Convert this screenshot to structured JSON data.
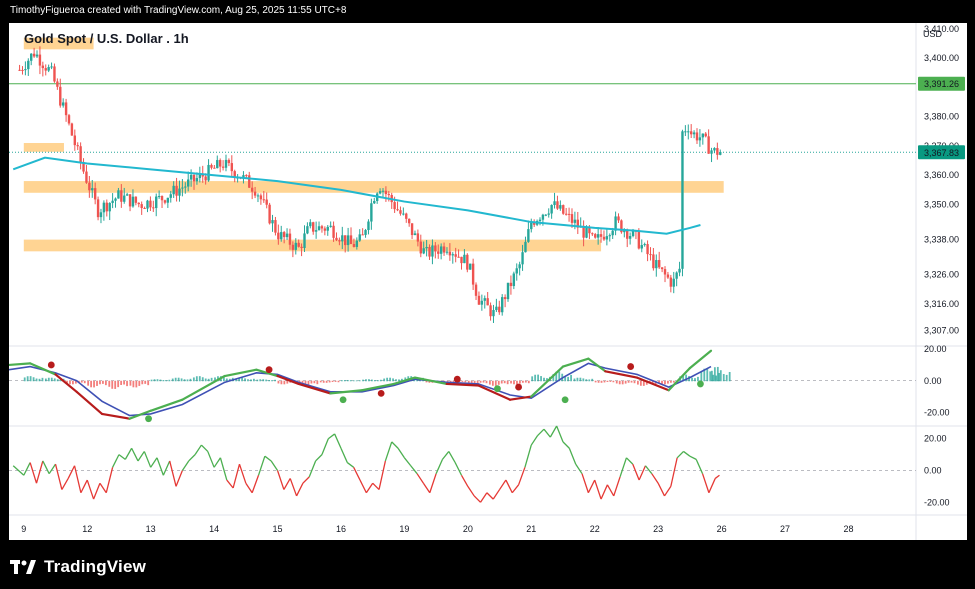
{
  "header": {
    "credit": "TimothyFigueroa created with TradingView.com, Aug 25, 2025 11:55 UTC+8"
  },
  "footer": {
    "brand": "TradingView"
  },
  "colors": {
    "candle_up": "#26a69a",
    "candle_down": "#ef5350",
    "moving_average": "#22b8cf",
    "zone": "#ffcc80",
    "level_line": "#4caf50",
    "macd_fast": "#4caf50",
    "macd_slow": "#3f51b5",
    "macd_fast_bear": "#b71c1c",
    "hist_up": "#26a69a",
    "hist_down": "#ef5350",
    "osc_up": "#4caf50",
    "osc_down": "#e53935"
  },
  "chart_data": [
    {
      "type": "candlestick",
      "title": "Gold Spot / U.S. Dollar . 1h",
      "currency_label": "USD",
      "y_ticks": [
        "3,410.00",
        "3,400.00",
        "3,380.00",
        "3,360.00",
        "3,350.00",
        "3,338.00",
        "3,326.00",
        "3,316.00",
        "3,307.00"
      ],
      "y_tick_values": [
        3410,
        3400,
        3380,
        3360,
        3350,
        3338,
        3326,
        3316,
        3307
      ],
      "x_ticks": [
        "9",
        "12",
        "13",
        "14",
        "15",
        "16",
        "19",
        "20",
        "21",
        "22",
        "23",
        "26",
        "27",
        "28"
      ],
      "x_tick_positions": [
        0,
        3,
        6,
        9,
        12,
        15,
        18,
        21,
        24,
        27,
        30,
        33,
        36,
        39
      ],
      "price_labels": [
        {
          "text": "3,391.26",
          "value": 3391.26,
          "color": "#4caf50"
        },
        {
          "text": "3,367.83",
          "value": 3367.83,
          "color": "#089981"
        }
      ],
      "hidden_tick": "3,370.00",
      "zones": [
        {
          "from": 3403,
          "to": 3407,
          "x_start": 0,
          "x_end": 3.3
        },
        {
          "from": 3368,
          "to": 3371,
          "x_start": 0,
          "x_end": 1.9
        },
        {
          "from": 3354,
          "to": 3358,
          "x_start": 0,
          "x_end": 33.1
        },
        {
          "from": 3334,
          "to": 3338,
          "x_start": 0,
          "x_end": 27.3
        }
      ],
      "horizontal_line": 3391.26,
      "moving_average": [
        [
          -0.5,
          3362
        ],
        [
          1,
          3366
        ],
        [
          3,
          3364
        ],
        [
          6,
          3362
        ],
        [
          9,
          3360
        ],
        [
          12,
          3358
        ],
        [
          15,
          3355
        ],
        [
          18,
          3351
        ],
        [
          21,
          3348
        ],
        [
          24,
          3344
        ],
        [
          27,
          3342
        ],
        [
          29,
          3341
        ],
        [
          30.4,
          3340
        ],
        [
          31.5,
          3342
        ],
        [
          32,
          3343
        ]
      ],
      "price_path": [
        [
          -0.2,
          3396
        ],
        [
          0.5,
          3402
        ],
        [
          1.3,
          3395
        ],
        [
          2,
          3380
        ],
        [
          2.8,
          3362
        ],
        [
          3.5,
          3348
        ],
        [
          4.5,
          3353
        ],
        [
          5.5,
          3350
        ],
        [
          6.5,
          3352
        ],
        [
          7.5,
          3356
        ],
        [
          8.5,
          3360
        ],
        [
          9.4,
          3364
        ],
        [
          10.2,
          3360
        ],
        [
          11,
          3355
        ],
        [
          12,
          3340
        ],
        [
          13,
          3335
        ],
        [
          13.5,
          3342
        ],
        [
          14.5,
          3342
        ],
        [
          15.5,
          3336
        ],
        [
          16,
          3338
        ],
        [
          16.5,
          3352
        ],
        [
          16.8,
          3357
        ],
        [
          17.5,
          3350
        ],
        [
          18,
          3345
        ],
        [
          19,
          3333
        ],
        [
          20,
          3336
        ],
        [
          21,
          3330
        ],
        [
          21.5,
          3318
        ],
        [
          22.3,
          3312
        ],
        [
          23.5,
          3330
        ],
        [
          24,
          3344
        ],
        [
          25,
          3350
        ],
        [
          26,
          3344
        ],
        [
          27,
          3337
        ],
        [
          28,
          3344
        ],
        [
          29,
          3338
        ],
        [
          30,
          3328
        ],
        [
          30.7,
          3323
        ],
        [
          31.2,
          3331
        ],
        [
          31.4,
          3375
        ],
        [
          32,
          3373
        ],
        [
          32.6,
          3368
        ],
        [
          33.0,
          3368
        ]
      ],
      "ylim": [
        3302,
        3412
      ],
      "xlim": [
        -0.7,
        42.1
      ]
    },
    {
      "type": "line",
      "name": "momentum-oscillator",
      "y_ticks": [
        "20.00",
        "0.00",
        "-20.00"
      ],
      "y_tick_values": [
        20,
        0,
        -20
      ],
      "ylim": [
        -28,
        22
      ],
      "fast": [
        [
          -0.7,
          10
        ],
        [
          0.3,
          11
        ],
        [
          1.5,
          4
        ],
        [
          2.5,
          -7
        ],
        [
          3.7,
          -21
        ],
        [
          5,
          -24
        ],
        [
          6,
          -19
        ],
        [
          7.5,
          -12
        ],
        [
          9.5,
          3
        ],
        [
          11,
          7
        ],
        [
          12,
          3
        ],
        [
          13,
          -2
        ],
        [
          14.5,
          -8
        ],
        [
          16,
          -6
        ],
        [
          17.5,
          -2
        ],
        [
          18.5,
          2
        ],
        [
          20,
          -2
        ],
        [
          21.5,
          -3
        ],
        [
          23,
          -12
        ],
        [
          24,
          -10
        ],
        [
          25.5,
          9
        ],
        [
          26.7,
          14
        ],
        [
          27.5,
          6
        ],
        [
          29,
          2
        ],
        [
          30.5,
          -6
        ],
        [
          31.5,
          8
        ],
        [
          32.5,
          19
        ]
      ],
      "slow": [
        [
          -0.7,
          7
        ],
        [
          0.3,
          9
        ],
        [
          1.5,
          5
        ],
        [
          2.5,
          0
        ],
        [
          3.7,
          -13
        ],
        [
          5,
          -22
        ],
        [
          6,
          -21
        ],
        [
          7.5,
          -15
        ],
        [
          9.5,
          -1
        ],
        [
          11,
          5
        ],
        [
          12,
          4
        ],
        [
          13,
          -1
        ],
        [
          14.5,
          -7
        ],
        [
          16,
          -7
        ],
        [
          17.5,
          -3
        ],
        [
          18.5,
          1
        ],
        [
          20,
          -1
        ],
        [
          21.5,
          -2
        ],
        [
          23,
          -9
        ],
        [
          24,
          -11
        ],
        [
          25.5,
          2
        ],
        [
          26.7,
          11
        ],
        [
          27.5,
          8
        ],
        [
          29,
          4
        ],
        [
          30.5,
          -4
        ],
        [
          31.5,
          2
        ],
        [
          32.5,
          9
        ]
      ],
      "histogram": [
        [
          0,
          3
        ],
        [
          1,
          2
        ],
        [
          2,
          -2
        ],
        [
          3,
          -4
        ],
        [
          4,
          -5
        ],
        [
          5,
          -4
        ],
        [
          6,
          1
        ],
        [
          7,
          2
        ],
        [
          8,
          3
        ],
        [
          9,
          3
        ],
        [
          10,
          2
        ],
        [
          11,
          1
        ],
        [
          12,
          -2
        ],
        [
          13,
          -3
        ],
        [
          14,
          -1
        ],
        [
          15,
          0.5
        ],
        [
          16,
          1
        ],
        [
          17,
          2
        ],
        [
          18,
          3
        ],
        [
          19,
          -1
        ],
        [
          20,
          -1
        ],
        [
          21,
          -2
        ],
        [
          22,
          -3
        ],
        [
          23,
          -2
        ],
        [
          24,
          4
        ],
        [
          25,
          6
        ],
        [
          26,
          2
        ],
        [
          27,
          -1
        ],
        [
          28,
          -2
        ],
        [
          29,
          -3
        ],
        [
          30,
          -2
        ],
        [
          31,
          4
        ],
        [
          32,
          8
        ],
        [
          32.5,
          9
        ]
      ],
      "signal_dots": [
        {
          "x": 1.3,
          "y": 10,
          "kind": "bear"
        },
        {
          "x": 5.9,
          "y": -24,
          "kind": "bull"
        },
        {
          "x": 11.6,
          "y": 7,
          "kind": "bear"
        },
        {
          "x": 15.1,
          "y": -12,
          "kind": "bull"
        },
        {
          "x": 16.9,
          "y": -8,
          "kind": "bear"
        },
        {
          "x": 20.5,
          "y": 1,
          "kind": "bear"
        },
        {
          "x": 22.4,
          "y": -5,
          "kind": "bull"
        },
        {
          "x": 23.4,
          "y": -4,
          "kind": "bear"
        },
        {
          "x": 25.6,
          "y": -12,
          "kind": "bull"
        },
        {
          "x": 28.7,
          "y": 9,
          "kind": "bear"
        },
        {
          "x": 32.0,
          "y": -2,
          "kind": "bull"
        }
      ]
    },
    {
      "type": "line",
      "name": "rsi-style-oscillator",
      "y_ticks": [
        "20.00",
        "0.00",
        "-20.00"
      ],
      "y_tick_values": [
        20,
        0,
        -20
      ],
      "ylim": [
        -28,
        28
      ],
      "values": [
        [
          -0.5,
          3
        ],
        [
          0,
          -3
        ],
        [
          0.3,
          5
        ],
        [
          0.6,
          -8
        ],
        [
          0.9,
          6
        ],
        [
          1.2,
          -2
        ],
        [
          1.5,
          4
        ],
        [
          1.8,
          -12
        ],
        [
          2.1,
          -5
        ],
        [
          2.4,
          3
        ],
        [
          2.7,
          -14
        ],
        [
          3.0,
          -6
        ],
        [
          3.3,
          -18
        ],
        [
          3.6,
          -8
        ],
        [
          3.9,
          -14
        ],
        [
          4.2,
          2
        ],
        [
          4.5,
          10
        ],
        [
          4.8,
          7
        ],
        [
          5.1,
          14
        ],
        [
          5.4,
          6
        ],
        [
          5.7,
          12
        ],
        [
          6.0,
          2
        ],
        [
          6.3,
          8
        ],
        [
          6.6,
          -3
        ],
        [
          6.9,
          6
        ],
        [
          7.2,
          -10
        ],
        [
          7.5,
          0
        ],
        [
          7.8,
          6
        ],
        [
          8.1,
          10
        ],
        [
          8.4,
          16
        ],
        [
          8.7,
          12
        ],
        [
          9.0,
          2
        ],
        [
          9.3,
          8
        ],
        [
          9.6,
          -6
        ],
        [
          9.9,
          -11
        ],
        [
          10.2,
          4
        ],
        [
          10.5,
          -8
        ],
        [
          10.8,
          -14
        ],
        [
          11.1,
          -3
        ],
        [
          11.4,
          9
        ],
        [
          11.7,
          6
        ],
        [
          12.0,
          0
        ],
        [
          12.3,
          -12
        ],
        [
          12.6,
          -5
        ],
        [
          12.9,
          -16
        ],
        [
          13.2,
          -8
        ],
        [
          13.5,
          -4
        ],
        [
          13.8,
          6
        ],
        [
          14.1,
          10
        ],
        [
          14.4,
          20
        ],
        [
          14.7,
          23
        ],
        [
          15.0,
          14
        ],
        [
          15.3,
          5
        ],
        [
          15.6,
          2
        ],
        [
          15.9,
          -6
        ],
        [
          16.2,
          -14
        ],
        [
          16.5,
          -8
        ],
        [
          16.8,
          -12
        ],
        [
          17.1,
          6
        ],
        [
          17.4,
          18
        ],
        [
          17.7,
          14
        ],
        [
          18.0,
          8
        ],
        [
          18.3,
          3
        ],
        [
          18.6,
          -2
        ],
        [
          18.9,
          -8
        ],
        [
          19.2,
          -14
        ],
        [
          19.5,
          -2
        ],
        [
          19.8,
          7
        ],
        [
          20.1,
          12
        ],
        [
          20.4,
          5
        ],
        [
          20.7,
          -3
        ],
        [
          21.0,
          -10
        ],
        [
          21.3,
          -16
        ],
        [
          21.6,
          -20
        ],
        [
          21.9,
          -14
        ],
        [
          22.2,
          -18
        ],
        [
          22.5,
          -12
        ],
        [
          22.8,
          -6
        ],
        [
          23.1,
          -14
        ],
        [
          23.4,
          -9
        ],
        [
          23.7,
          2
        ],
        [
          24.0,
          16
        ],
        [
          24.3,
          22
        ],
        [
          24.6,
          26
        ],
        [
          24.9,
          21
        ],
        [
          25.2,
          28
        ],
        [
          25.5,
          18
        ],
        [
          25.8,
          14
        ],
        [
          26.1,
          4
        ],
        [
          26.4,
          -2
        ],
        [
          26.7,
          -14
        ],
        [
          27.0,
          -6
        ],
        [
          27.3,
          -18
        ],
        [
          27.6,
          -9
        ],
        [
          27.9,
          -16
        ],
        [
          28.2,
          -4
        ],
        [
          28.5,
          8
        ],
        [
          28.8,
          4
        ],
        [
          29.1,
          -6
        ],
        [
          29.4,
          3
        ],
        [
          29.7,
          -2
        ],
        [
          30.0,
          -8
        ],
        [
          30.3,
          -16
        ],
        [
          30.6,
          -10
        ],
        [
          30.9,
          8
        ],
        [
          31.2,
          12
        ],
        [
          31.5,
          9
        ],
        [
          31.8,
          7
        ],
        [
          32.1,
          -2
        ],
        [
          32.4,
          -14
        ],
        [
          32.7,
          -5
        ],
        [
          32.9,
          -3
        ]
      ]
    }
  ]
}
